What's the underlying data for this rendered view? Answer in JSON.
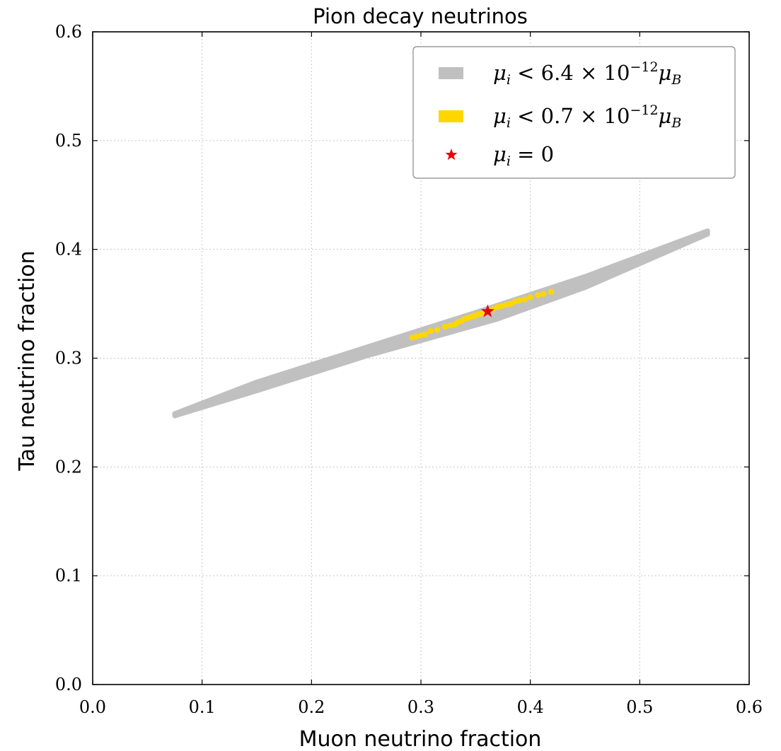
{
  "chart_data": {
    "type": "scatter",
    "title": "Pion decay neutrinos",
    "xlabel": "Muon neutrino fraction",
    "ylabel": "Tau neutrino fraction",
    "xlim": [
      0.0,
      0.6
    ],
    "ylim": [
      0.0,
      0.6
    ],
    "x_ticks": [
      "0.0",
      "0.1",
      "0.2",
      "0.3",
      "0.4",
      "0.5",
      "0.6"
    ],
    "y_ticks": [
      "0.0",
      "0.1",
      "0.2",
      "0.3",
      "0.4",
      "0.5",
      "0.6"
    ],
    "grid": true,
    "legend_position": "top-right",
    "legend": [
      {
        "label": "μi < 6.4 × 10⁻¹² μB",
        "marker": "band",
        "color": "#c0c0c0"
      },
      {
        "label": "μi < 0.7 × 10⁻¹² μB",
        "marker": "band",
        "color": "#ffd700"
      },
      {
        "label": "μi = 0",
        "marker": "star",
        "color": "#e8000b"
      }
    ],
    "series": [
      {
        "name": "μi < 6.4 × 10⁻¹² μB",
        "kind": "region",
        "color": "#c0c0c0",
        "upper": [
          [
            0.075,
            0.249
          ],
          [
            0.15,
            0.278
          ],
          [
            0.25,
            0.31
          ],
          [
            0.35,
            0.342
          ],
          [
            0.45,
            0.375
          ],
          [
            0.562,
            0.417
          ]
        ],
        "lower": [
          [
            0.075,
            0.247
          ],
          [
            0.15,
            0.27
          ],
          [
            0.25,
            0.302
          ],
          [
            0.37,
            0.336
          ],
          [
            0.45,
            0.365
          ],
          [
            0.562,
            0.414
          ]
        ]
      },
      {
        "name": "μi < 0.7 × 10⁻¹² μB",
        "kind": "points",
        "color": "#ffd700",
        "points": [
          [
            0.292,
            0.319
          ],
          [
            0.296,
            0.32
          ],
          [
            0.3,
            0.321
          ],
          [
            0.304,
            0.322
          ],
          [
            0.309,
            0.325
          ],
          [
            0.315,
            0.326
          ],
          [
            0.322,
            0.329
          ],
          [
            0.327,
            0.33
          ],
          [
            0.331,
            0.331
          ],
          [
            0.334,
            0.333
          ],
          [
            0.337,
            0.334
          ],
          [
            0.34,
            0.336
          ],
          [
            0.343,
            0.337
          ],
          [
            0.346,
            0.338
          ],
          [
            0.349,
            0.339
          ],
          [
            0.352,
            0.34
          ],
          [
            0.355,
            0.341
          ],
          [
            0.358,
            0.342
          ],
          [
            0.362,
            0.344
          ],
          [
            0.366,
            0.345
          ],
          [
            0.37,
            0.347
          ],
          [
            0.374,
            0.348
          ],
          [
            0.378,
            0.349
          ],
          [
            0.382,
            0.35
          ],
          [
            0.386,
            0.352
          ],
          [
            0.39,
            0.353
          ],
          [
            0.395,
            0.354
          ],
          [
            0.4,
            0.356
          ],
          [
            0.407,
            0.358
          ],
          [
            0.412,
            0.359
          ],
          [
            0.419,
            0.361
          ]
        ]
      },
      {
        "name": "μi = 0",
        "kind": "star",
        "color": "#e8000b",
        "points": [
          [
            0.361,
            0.343
          ]
        ]
      }
    ]
  }
}
